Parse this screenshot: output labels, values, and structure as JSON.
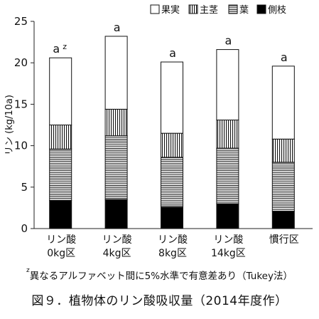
{
  "chart_data": {
    "type": "bar",
    "stacked": true,
    "categories": [
      [
        "リン酸",
        "0kg区"
      ],
      [
        "リン酸",
        "4kg区"
      ],
      [
        "リン酸",
        "8kg区"
      ],
      [
        "リン酸",
        "14kg区"
      ],
      [
        "慣行区"
      ]
    ],
    "series": [
      {
        "name": "側枝",
        "pattern": "solid-black",
        "values": [
          3.4,
          3.5,
          2.6,
          3.0,
          2.1
        ]
      },
      {
        "name": "葉",
        "pattern": "horizontal-lines",
        "values": [
          6.2,
          7.7,
          6.0,
          6.7,
          5.9
        ]
      },
      {
        "name": "主茎",
        "pattern": "vertical-lines",
        "values": [
          2.9,
          3.2,
          2.9,
          3.4,
          2.8
        ]
      },
      {
        "name": "果実",
        "pattern": "white",
        "values": [
          8.1,
          8.8,
          8.6,
          8.5,
          8.8
        ]
      }
    ],
    "legend_order": [
      "果実",
      "主茎",
      "葉",
      "側枝"
    ],
    "legend_position": "top",
    "significance_labels": [
      "a",
      "a",
      "a",
      "a",
      "a"
    ],
    "significance_superscript": "z",
    "ylabel": "リン (kg/10a)",
    "ylim": [
      0,
      25
    ],
    "yticks": [
      0,
      5,
      10,
      15,
      20,
      25
    ],
    "grid": false
  },
  "footnote": {
    "marker": "z",
    "text": "異なるアルファベット間に5%水準で有意差あり（Tukey法）"
  },
  "caption": "図９．植物体のリン酸吸収量（2014年度作）"
}
